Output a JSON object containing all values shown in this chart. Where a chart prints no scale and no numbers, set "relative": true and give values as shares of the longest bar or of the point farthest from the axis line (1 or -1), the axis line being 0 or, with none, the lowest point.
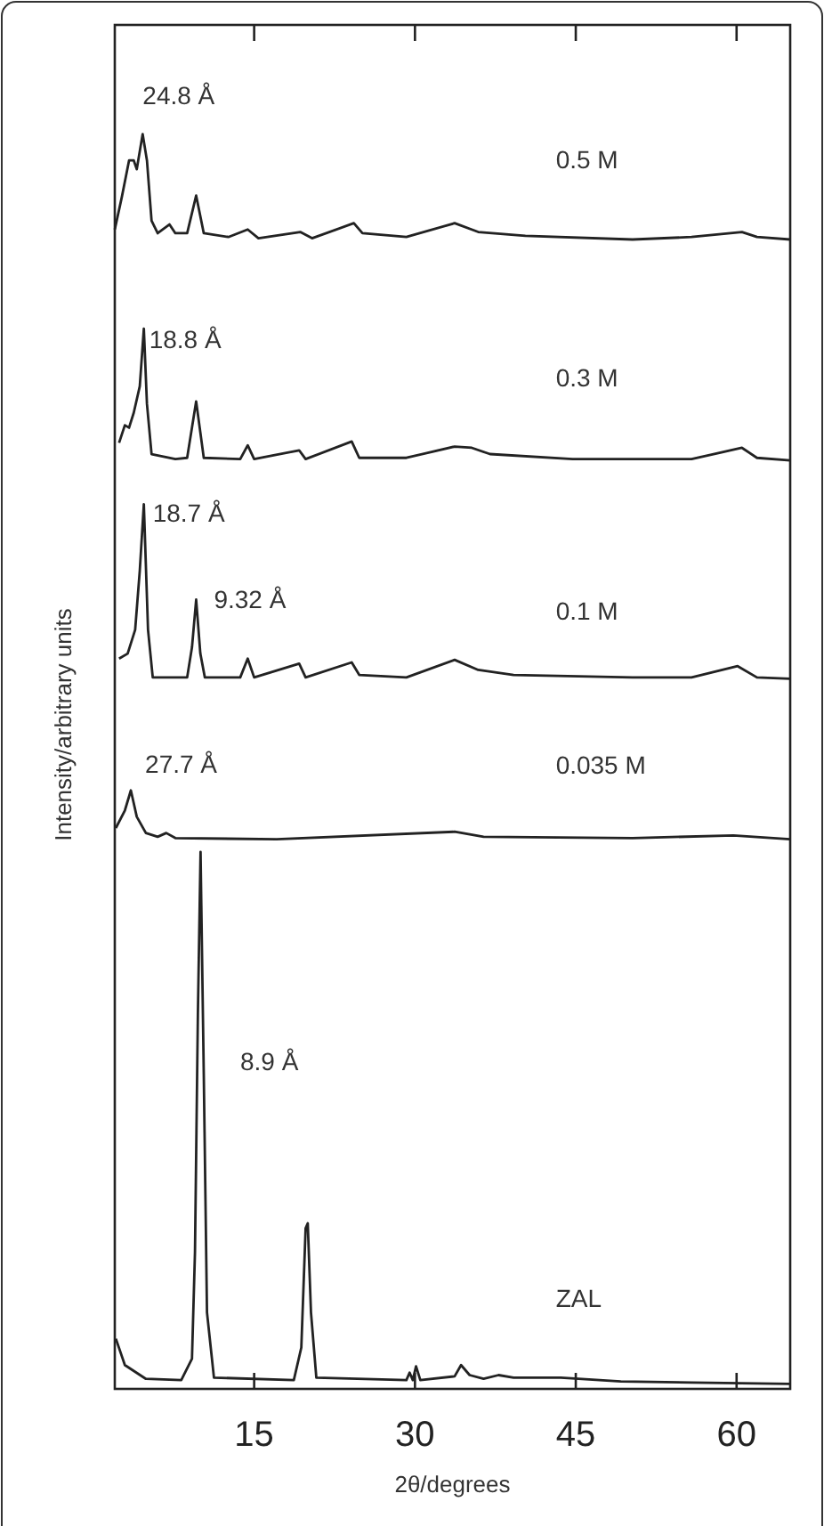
{
  "chart_data": {
    "type": "line",
    "relative": true,
    "xlabel": "2θ/degrees",
    "ylabel": "Intensity/arbitrary units",
    "xlim": [
      2,
      65
    ],
    "xticks": [
      15,
      30,
      45,
      60
    ],
    "tick_labels": "x",
    "legend": false,
    "grid": false,
    "marker": "none",
    "line_style": "solid",
    "series": [
      {
        "name": "0.5 M",
        "color": "#222222",
        "x": [
          2,
          2.66,
          3.33,
          3.77,
          4.05,
          4.6,
          5,
          5.43,
          6,
          7.1,
          7.65,
          8.75,
          9.59,
          10.3,
          12.6,
          14.4,
          15.4,
          19.3,
          20.4,
          24.3,
          25.1,
          29.2,
          33.7,
          35.9,
          40.3,
          50.3,
          55.8,
          60.5,
          61.9,
          65
        ],
        "values": [
          0.924,
          0.95,
          0.979,
          0.979,
          0.972,
          1,
          0.979,
          0.931,
          0.921,
          0.928,
          0.921,
          0.921,
          0.951,
          0.921,
          0.918,
          0.924,
          0.917,
          0.922,
          0.917,
          0.929,
          0.921,
          0.918,
          0.929,
          0.922,
          0.919,
          0.916,
          0.918,
          0.922,
          0.918,
          0.916
        ]
      },
      {
        "name": "0.3 M",
        "color": "#222222",
        "x": [
          2.4,
          2.94,
          3.33,
          3.77,
          4.33,
          4.71,
          5,
          5.43,
          7.65,
          8.75,
          9.59,
          10.3,
          13.7,
          14.4,
          15,
          19.2,
          19.8,
          24.1,
          24.8,
          29.2,
          33.7,
          35.3,
          37,
          44.7,
          55.8,
          60.5,
          61.9,
          65
        ],
        "values": [
          0.754,
          0.768,
          0.766,
          0.778,
          0.799,
          0.845,
          0.785,
          0.745,
          0.741,
          0.742,
          0.787,
          0.742,
          0.741,
          0.752,
          0.741,
          0.748,
          0.741,
          0.755,
          0.742,
          0.742,
          0.751,
          0.75,
          0.745,
          0.741,
          0.741,
          0.75,
          0.742,
          0.74
        ]
      },
      {
        "name": "0.1 M",
        "color": "#222222",
        "x": [
          2.4,
          3.2,
          3.9,
          4.33,
          4.71,
          5.1,
          5.54,
          8.75,
          9.2,
          9.59,
          9.98,
          10.4,
          13.7,
          14.4,
          15,
          19.2,
          19.8,
          24.1,
          24.8,
          29.2,
          33.7,
          35.9,
          39.2,
          50.3,
          55.8,
          60.1,
          61.9,
          65
        ],
        "values": [
          0.582,
          0.586,
          0.605,
          0.652,
          0.705,
          0.605,
          0.567,
          0.567,
          0.591,
          0.629,
          0.586,
          0.567,
          0.567,
          0.582,
          0.567,
          0.578,
          0.567,
          0.579,
          0.569,
          0.567,
          0.581,
          0.573,
          0.569,
          0.567,
          0.567,
          0.576,
          0.567,
          0.566
        ]
      },
      {
        "name": "0.035 M",
        "color": "#222222",
        "x": [
          2.1,
          2.94,
          3.5,
          4.05,
          4.9,
          6,
          6.8,
          7.65,
          17.1,
          33.7,
          36.4,
          50.3,
          59.7,
          65
        ],
        "values": [
          0.447,
          0.461,
          0.477,
          0.456,
          0.443,
          0.44,
          0.443,
          0.439,
          0.438,
          0.444,
          0.44,
          0.439,
          0.441,
          0.438
        ]
      },
      {
        "name": "ZAL",
        "color": "#222222",
        "x": [
          2.1,
          2.94,
          4.9,
          8.2,
          9.2,
          9.48,
          9.75,
          10,
          10.3,
          10.6,
          11.25,
          18.7,
          19.4,
          19.8,
          20,
          20.3,
          20.8,
          29.2,
          29.5,
          29.8,
          30.1,
          30.5,
          33.7,
          34.3,
          35.1,
          36.4,
          37.8,
          39.2,
          43.6,
          49.2,
          55.8,
          65
        ],
        "values": [
          0.04,
          0.019,
          0.008,
          0.007,
          0.024,
          0.109,
          0.298,
          0.428,
          0.251,
          0.061,
          0.009,
          0.007,
          0.033,
          0.128,
          0.132,
          0.061,
          0.009,
          0.007,
          0.013,
          0.007,
          0.018,
          0.007,
          0.01,
          0.019,
          0.011,
          0.008,
          0.011,
          0.009,
          0.009,
          0.006,
          0.005,
          0.004
        ]
      }
    ],
    "annotations": [
      {
        "text": "24.8 Å",
        "x": 4.6,
        "y": 1
      },
      {
        "text": "18.8  Å",
        "x": 4.71,
        "y": 0.845
      },
      {
        "text": "18.7 Å",
        "x": 4.71,
        "y": 0.705
      },
      {
        "text": "9.32 Å",
        "x": 9.59,
        "y": 0.629
      },
      {
        "text": "27.7 Å",
        "x": 3.5,
        "y": 0.477
      },
      "8.9 Å"
    ]
  }
}
